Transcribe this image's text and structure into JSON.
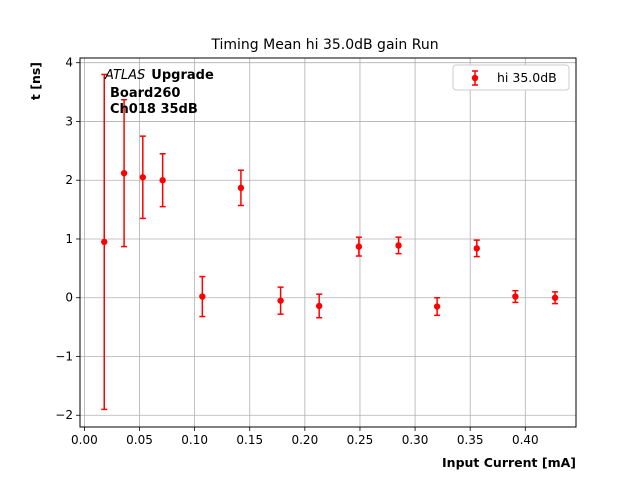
{
  "chart_data": {
    "type": "scatter",
    "title": "Timing Mean hi 35.0dB gain Run",
    "xlabel": "Input Current [mA]",
    "ylabel": "t [ns]",
    "xlim": [
      -0.004,
      0.446
    ],
    "ylim": [
      -2.2,
      4.08
    ],
    "xticks": [
      0.0,
      0.05,
      0.1,
      0.15,
      0.2,
      0.25,
      0.3,
      0.35,
      0.4
    ],
    "xtick_labels": [
      "0.00",
      "0.05",
      "0.10",
      "0.15",
      "0.20",
      "0.25",
      "0.30",
      "0.35",
      "0.40"
    ],
    "yticks": [
      -2,
      -1,
      0,
      1,
      2,
      3,
      4
    ],
    "ytick_labels": [
      "−2",
      "−1",
      "0",
      "1",
      "2",
      "3",
      "4"
    ],
    "grid": true,
    "legend_position": "top-right",
    "annotation": {
      "italic": "ATLAS",
      "bold": "Upgrade",
      "line2": "Board260",
      "line3": "Ch018 35dB"
    },
    "series": [
      {
        "name": "hi 35.0dB",
        "color": "#ff0000",
        "marker": "circle",
        "x": [
          0.018,
          0.036,
          0.053,
          0.071,
          0.107,
          0.142,
          0.178,
          0.213,
          0.249,
          0.285,
          0.32,
          0.356,
          0.391,
          0.427
        ],
        "y": [
          0.95,
          2.12,
          2.05,
          2.0,
          0.02,
          1.87,
          -0.05,
          -0.14,
          0.87,
          0.89,
          -0.15,
          0.84,
          0.02,
          0.0
        ],
        "yerr": [
          2.85,
          1.25,
          0.7,
          0.45,
          0.34,
          0.3,
          0.23,
          0.2,
          0.16,
          0.14,
          0.15,
          0.14,
          0.1,
          0.1
        ]
      }
    ]
  }
}
